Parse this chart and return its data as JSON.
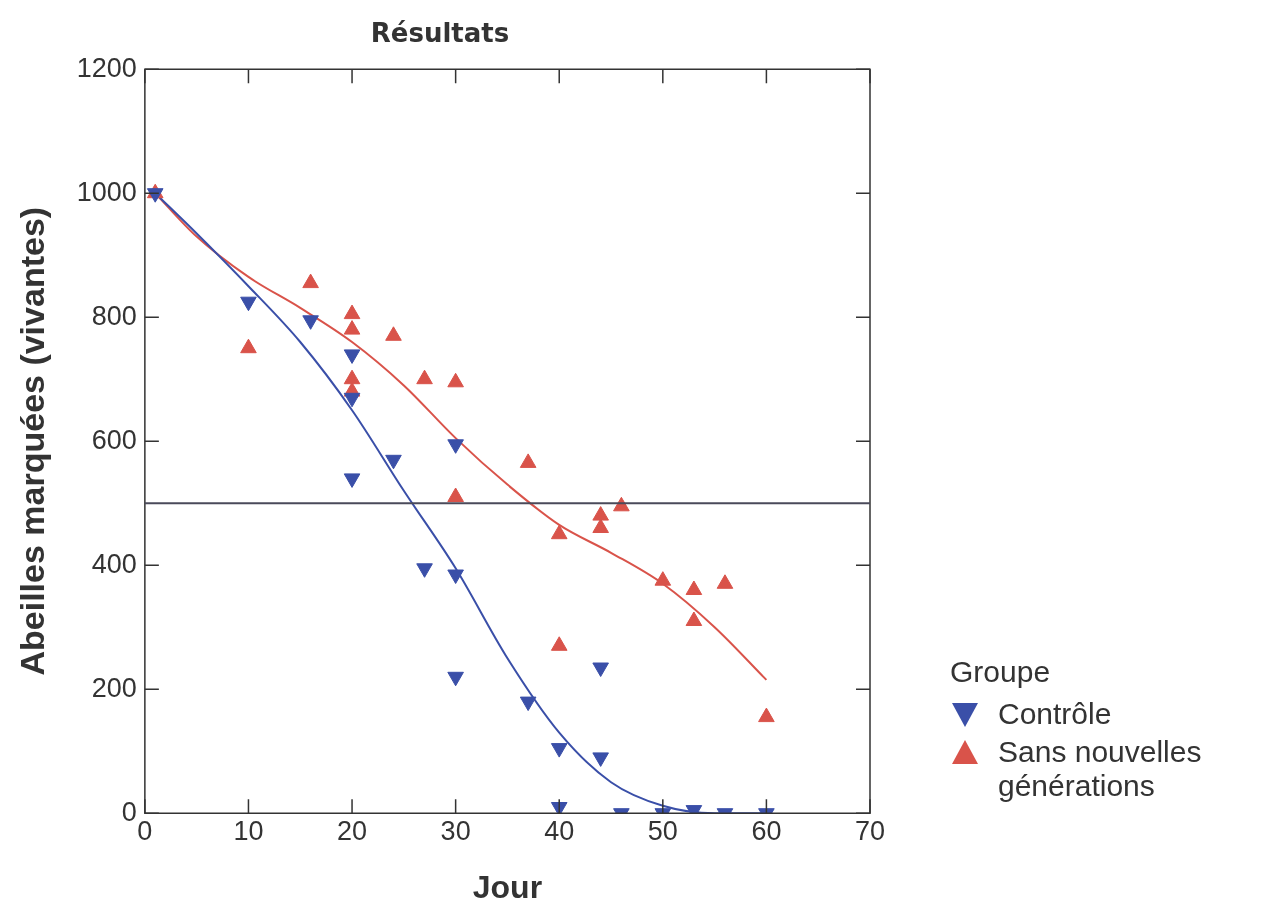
{
  "chart_data": {
    "type": "scatter",
    "title": "Résultats",
    "xlabel": "Jour",
    "ylabel": "Abeilles marquées (vivantes)",
    "legend_title": "Groupe",
    "legend": "right",
    "grid": false,
    "xlim": [
      0,
      70
    ],
    "xticks": [
      0,
      10,
      20,
      30,
      40,
      50,
      60,
      70
    ],
    "ylim": [
      0,
      1200
    ],
    "yticks": [
      0,
      200,
      400,
      600,
      800,
      1000,
      1200
    ],
    "ref_lines": [
      {
        "axis": "y",
        "value": 500,
        "color": "#4a4a5a"
      }
    ],
    "series": [
      {
        "name": "Contrôle",
        "color": "#3a4fa8",
        "marker": "triangle-down",
        "x": [
          1,
          10,
          16,
          20,
          20,
          20,
          24,
          27,
          30,
          30,
          30,
          37,
          40,
          40,
          44,
          44,
          46,
          50,
          53,
          56,
          60
        ],
        "values": [
          1000,
          825,
          795,
          740,
          670,
          540,
          570,
          395,
          595,
          385,
          220,
          180,
          105,
          10,
          90,
          235,
          0,
          0,
          5,
          0,
          0
        ]
      },
      {
        "name": "Sans nouvelles générations",
        "color": "#d9534a",
        "marker": "triangle",
        "x": [
          1,
          10,
          16,
          20,
          20,
          20,
          20,
          24,
          27,
          30,
          30,
          37,
          40,
          40,
          44,
          44,
          46,
          50,
          53,
          53,
          56,
          60
        ],
        "values": [
          1000,
          750,
          855,
          805,
          780,
          700,
          680,
          770,
          700,
          695,
          510,
          565,
          450,
          270,
          480,
          460,
          495,
          375,
          360,
          310,
          370,
          155
        ]
      },
      {
        "type": "line",
        "color": "#3a4fa8",
        "marker": "none",
        "x": [
          1,
          5,
          10,
          15,
          20,
          25,
          30,
          35,
          40,
          45,
          50,
          55,
          60
        ],
        "values": [
          1000,
          935,
          850,
          760,
          650,
          520,
          395,
          250,
          130,
          50,
          12,
          0,
          0
        ]
      },
      {
        "type": "line",
        "color": "#d9534a",
        "marker": "none",
        "x": [
          1,
          5,
          10,
          15,
          20,
          25,
          30,
          35,
          40,
          45,
          50,
          55,
          60
        ],
        "values": [
          1000,
          930,
          865,
          815,
          760,
          690,
          605,
          530,
          465,
          420,
          370,
          300,
          215
        ]
      }
    ]
  }
}
